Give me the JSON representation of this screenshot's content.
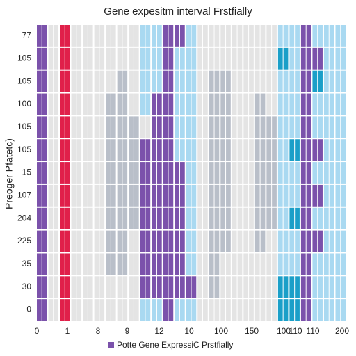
{
  "chart_data": {
    "type": "heatmap",
    "title": "Gene expesitm interval Frstfially",
    "ylabel": "Preoger Pfatetc)",
    "legend": "Potte Gene ExpressiC Prstfially",
    "categories": [
      "77",
      "105",
      "105",
      "100",
      "105",
      "105",
      "15",
      "107",
      "204",
      "225",
      "35",
      "30",
      "0"
    ],
    "xlabels": [
      "0",
      "1",
      "8",
      "9",
      "12",
      "10",
      "100",
      "150",
      "100",
      "110",
      "110",
      "200"
    ],
    "colors": [
      "#e4e4e4",
      "#b9bfc9",
      "#a9d9f1",
      "#7b52ab",
      "#e0204a",
      "#1a9fc8"
    ],
    "cells": [
      [
        3,
        3,
        3,
        3,
        3,
        3,
        3,
        3,
        3,
        3,
        3,
        3,
        3
      ],
      [
        0,
        0,
        0,
        0,
        0,
        0,
        0,
        0,
        0,
        0,
        0,
        0,
        0
      ],
      [
        4,
        4,
        4,
        4,
        4,
        4,
        4,
        4,
        4,
        4,
        4,
        4,
        4
      ],
      [
        0,
        0,
        0,
        0,
        0,
        0,
        0,
        0,
        0,
        0,
        0,
        0,
        0
      ],
      [
        0,
        0,
        0,
        0,
        0,
        0,
        0,
        0,
        0,
        0,
        0,
        0,
        0
      ],
      [
        0,
        0,
        0,
        0,
        0,
        0,
        0,
        0,
        0,
        0,
        0,
        0,
        0
      ],
      [
        0,
        0,
        0,
        1,
        1,
        1,
        1,
        1,
        1,
        1,
        1,
        0,
        0
      ],
      [
        0,
        0,
        1,
        1,
        1,
        1,
        1,
        1,
        1,
        1,
        1,
        0,
        0
      ],
      [
        0,
        0,
        0,
        0,
        1,
        1,
        1,
        1,
        1,
        0,
        0,
        0,
        0
      ],
      [
        2,
        2,
        2,
        2,
        0,
        3,
        3,
        3,
        3,
        3,
        3,
        3,
        2
      ],
      [
        2,
        2,
        2,
        3,
        3,
        3,
        3,
        3,
        3,
        3,
        3,
        3,
        2
      ],
      [
        3,
        3,
        3,
        3,
        3,
        3,
        3,
        3,
        3,
        3,
        3,
        3,
        3
      ],
      [
        3,
        2,
        2,
        2,
        2,
        2,
        3,
        3,
        3,
        3,
        3,
        3,
        2
      ],
      [
        2,
        2,
        2,
        2,
        2,
        2,
        2,
        2,
        2,
        2,
        2,
        3,
        2
      ],
      [
        0,
        0,
        0,
        0,
        0,
        0,
        0,
        0,
        0,
        0,
        0,
        0,
        0
      ],
      [
        0,
        0,
        1,
        1,
        1,
        1,
        1,
        1,
        1,
        1,
        1,
        1,
        0
      ],
      [
        0,
        0,
        1,
        1,
        1,
        1,
        1,
        1,
        1,
        1,
        0,
        0,
        0
      ],
      [
        0,
        0,
        0,
        0,
        0,
        0,
        0,
        0,
        0,
        0,
        0,
        0,
        0
      ],
      [
        0,
        0,
        0,
        0,
        0,
        0,
        0,
        0,
        0,
        0,
        0,
        0,
        0
      ],
      [
        0,
        0,
        0,
        1,
        1,
        1,
        1,
        1,
        1,
        1,
        0,
        0,
        0
      ],
      [
        0,
        0,
        0,
        0,
        1,
        1,
        1,
        1,
        1,
        0,
        0,
        0,
        0
      ],
      [
        2,
        5,
        2,
        2,
        2,
        2,
        2,
        2,
        2,
        2,
        2,
        5,
        5
      ],
      [
        2,
        2,
        2,
        2,
        2,
        5,
        2,
        2,
        5,
        2,
        2,
        5,
        5
      ],
      [
        3,
        3,
        3,
        3,
        3,
        3,
        3,
        3,
        3,
        3,
        3,
        3,
        3
      ],
      [
        2,
        3,
        5,
        2,
        2,
        3,
        2,
        3,
        2,
        3,
        2,
        2,
        2
      ],
      [
        2,
        2,
        2,
        2,
        2,
        2,
        2,
        2,
        2,
        2,
        2,
        2,
        2
      ],
      [
        2,
        2,
        2,
        2,
        2,
        2,
        2,
        2,
        2,
        2,
        2,
        2,
        2
      ]
    ]
  }
}
